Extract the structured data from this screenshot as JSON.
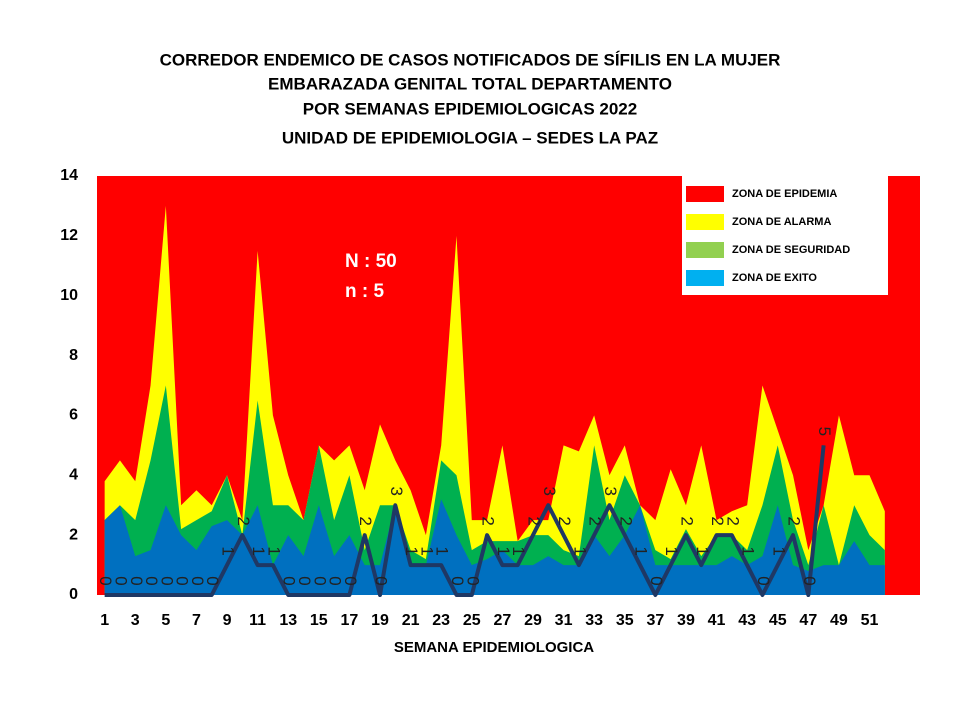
{
  "chart_data": {
    "type": "corridor",
    "title": [
      "CORREDOR  ENDEMICO  DE CASOS NOTIFICADOS  DE SÍFILIS  EN LA MUJER",
      "EMBARAZADA  GENITAL  TOTAL DEPARTAMENTO",
      "POR SEMANAS  EPIDEMIOLOGICAS  2022",
      "UNIDAD  DE EPIDEMIOLOGIA  – SEDES LA PAZ"
    ],
    "xlabel": "SEMANA EPIDEMIOLOGICA",
    "annotations": [
      "N : 50",
      "n : 5"
    ],
    "x": [
      1,
      2,
      3,
      4,
      5,
      6,
      7,
      8,
      9,
      10,
      11,
      12,
      13,
      14,
      15,
      16,
      17,
      18,
      19,
      20,
      21,
      22,
      23,
      24,
      25,
      26,
      27,
      28,
      29,
      30,
      31,
      32,
      33,
      34,
      35,
      36,
      37,
      38,
      39,
      40,
      41,
      42,
      43,
      44,
      45,
      46,
      47,
      48,
      49,
      50,
      51,
      52
    ],
    "xlim": [
      0.5,
      54.3
    ],
    "xticks": [
      1,
      3,
      5,
      7,
      9,
      11,
      13,
      15,
      17,
      19,
      21,
      23,
      25,
      27,
      29,
      31,
      33,
      35,
      37,
      39,
      41,
      43,
      45,
      47,
      49,
      51
    ],
    "ylim": [
      0,
      14
    ],
    "yticks": [
      0,
      2,
      4,
      6,
      8,
      10,
      12,
      14
    ],
    "background_zone": {
      "name": "ZONA DE EPIDEMIA",
      "color": "#ff0000"
    },
    "zones": [
      {
        "name": "ZONA DE ALARMA",
        "color": "#ffff00",
        "values": [
          3.8,
          4.5,
          3.8,
          7,
          13,
          3,
          3.5,
          3,
          4,
          2.5,
          11.5,
          6,
          4,
          2.5,
          5,
          4.5,
          5,
          3.5,
          5.7,
          4.5,
          3.5,
          2,
          5,
          12,
          2.5,
          2.5,
          5,
          1.8,
          2.5,
          2.5,
          5,
          4.8,
          6,
          4,
          5,
          3,
          2.5,
          4.2,
          3,
          5,
          2.5,
          2.8,
          3,
          7,
          5.5,
          4,
          1.5,
          3,
          6,
          4,
          4,
          2.8
        ]
      },
      {
        "name": "ZONA DE  SEGURIDAD",
        "color": "#00b050",
        "legend_color": "#92d050",
        "values": [
          2.5,
          3,
          2.5,
          4.5,
          7,
          2.2,
          2.5,
          2.8,
          4,
          2,
          6.5,
          3,
          3,
          2.5,
          5,
          2.5,
          4,
          1.5,
          3,
          3,
          1.5,
          1.2,
          4.5,
          4,
          1.5,
          1.8,
          1.8,
          1.8,
          2,
          2,
          1.5,
          1.3,
          5,
          2.5,
          4,
          3,
          1.5,
          1.2,
          2.2,
          1.3,
          2,
          2,
          1.5,
          3,
          5,
          2.5,
          1,
          3,
          1,
          3,
          2,
          1.5
        ]
      },
      {
        "name": "ZONA DE  EXITO",
        "color": "#0070c0",
        "legend_color": "#00b0f0",
        "values": [
          2.5,
          3,
          1.3,
          1.5,
          3,
          2,
          1.5,
          2.3,
          2.5,
          2,
          3,
          1,
          2,
          1.3,
          3,
          1.3,
          2,
          1,
          1,
          3,
          1,
          1,
          3.2,
          2,
          1,
          1.2,
          1.5,
          1,
          1,
          1.3,
          1,
          1,
          2,
          1.3,
          2,
          3,
          1,
          1,
          1,
          1,
          1,
          1.3,
          1,
          1.3,
          3,
          1,
          0.8,
          1,
          1,
          1.8,
          1,
          1
        ]
      }
    ],
    "cases": {
      "color": "#1f3864",
      "values": [
        0,
        0,
        0,
        0,
        0,
        0,
        0,
        0,
        1,
        2,
        1,
        1,
        0,
        0,
        0,
        0,
        0,
        2,
        0,
        3,
        1,
        1,
        1,
        0,
        0,
        2,
        1,
        1,
        2,
        3,
        2,
        1,
        2,
        3,
        2,
        1,
        0,
        1,
        2,
        1,
        2,
        2,
        1,
        0,
        1,
        2,
        0,
        5,
        null,
        null,
        null,
        null
      ]
    }
  }
}
